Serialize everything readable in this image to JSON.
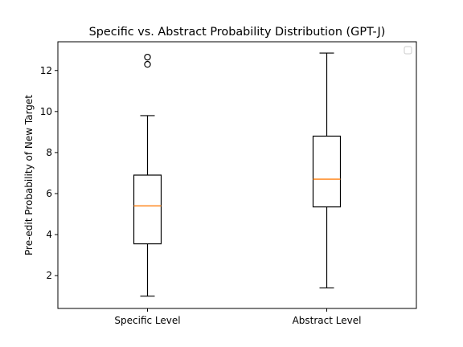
{
  "chart_data": {
    "type": "box",
    "title": "Specific vs. Abstract Probability Distribution (GPT-J)",
    "xlabel": "",
    "ylabel": "Pre-edit Probability of New Target",
    "categories": [
      "Specific Level",
      "Abstract Level"
    ],
    "ylim": [
      0.4,
      13.4
    ],
    "yticks": [
      2,
      4,
      6,
      8,
      10,
      12
    ],
    "grid": false,
    "legend": "top-right",
    "boxes": [
      {
        "category": "Specific Level",
        "whisker_low": 1.0,
        "q1": 3.55,
        "median": 5.4,
        "q3": 6.9,
        "whisker_high": 9.8,
        "outliers": [
          12.3,
          12.65
        ]
      },
      {
        "category": "Abstract Level",
        "whisker_low": 1.4,
        "q1": 5.35,
        "median": 6.7,
        "q3": 8.8,
        "whisker_high": 12.85,
        "outliers": []
      }
    ],
    "colors": {
      "box": "#000000",
      "median": "#ff7f0e",
      "frame": "#000000"
    }
  }
}
